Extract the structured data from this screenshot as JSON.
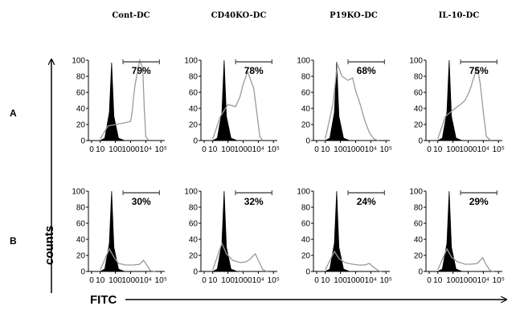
{
  "chart_data": {
    "type": "area",
    "columns": [
      "Cont-DC",
      "CD40KO-DC",
      "P19KO-DC",
      "IL-10-DC"
    ],
    "rows": [
      "A",
      "B"
    ],
    "xlabel": "FITC",
    "ylabel": "counts",
    "x_scale": "log",
    "x_tick_labels": [
      "0",
      "10",
      "100",
      "1000",
      "10⁴",
      "10⁵"
    ],
    "y_tick_labels": [
      "0",
      "20",
      "40",
      "60",
      "80",
      "100"
    ],
    "ylim": [
      0,
      100
    ],
    "colors": {
      "control_fill": "#000000",
      "sample_line": "#9a9a9a",
      "gate_line": "#555555"
    },
    "panels": [
      {
        "row": "A",
        "column": "Cont-DC",
        "gate_percent": "79%",
        "control": [
          [
            1,
            0
          ],
          [
            1.3,
            3
          ],
          [
            1.6,
            35
          ],
          [
            1.75,
            97
          ],
          [
            1.9,
            30
          ],
          [
            2.2,
            3
          ],
          [
            2.6,
            0
          ]
        ],
        "sample": [
          [
            1,
            2
          ],
          [
            1.5,
            18
          ],
          [
            2,
            20
          ],
          [
            2.6,
            22
          ],
          [
            3,
            24
          ],
          [
            3.1,
            35
          ],
          [
            3.2,
            55
          ],
          [
            3.3,
            70
          ],
          [
            3.45,
            85
          ],
          [
            3.6,
            100
          ],
          [
            3.8,
            90
          ],
          [
            3.9,
            40
          ],
          [
            4,
            5
          ],
          [
            4.2,
            0
          ]
        ]
      },
      {
        "row": "A",
        "column": "CD40KO-DC",
        "gate_percent": "78%",
        "control": [
          [
            1,
            0
          ],
          [
            1.3,
            3
          ],
          [
            1.6,
            35
          ],
          [
            1.75,
            100
          ],
          [
            1.9,
            30
          ],
          [
            2.2,
            3
          ],
          [
            2.6,
            0
          ]
        ],
        "sample": [
          [
            1,
            2
          ],
          [
            1.5,
            30
          ],
          [
            2,
            45
          ],
          [
            2.5,
            42
          ],
          [
            2.8,
            55
          ],
          [
            3,
            70
          ],
          [
            3.3,
            86
          ],
          [
            3.5,
            75
          ],
          [
            3.7,
            65
          ],
          [
            3.9,
            35
          ],
          [
            4.1,
            5
          ],
          [
            4.3,
            0
          ]
        ]
      },
      {
        "row": "A",
        "column": "P19KO-DC",
        "gate_percent": "68%",
        "control": [
          [
            1,
            0
          ],
          [
            1.3,
            3
          ],
          [
            1.6,
            35
          ],
          [
            1.75,
            98
          ],
          [
            1.9,
            30
          ],
          [
            2.2,
            3
          ],
          [
            2.6,
            0
          ]
        ],
        "sample": [
          [
            1,
            2
          ],
          [
            1.5,
            45
          ],
          [
            1.8,
            95
          ],
          [
            2.1,
            80
          ],
          [
            2.5,
            75
          ],
          [
            2.8,
            78
          ],
          [
            3,
            62
          ],
          [
            3.3,
            45
          ],
          [
            3.6,
            25
          ],
          [
            3.9,
            10
          ],
          [
            4.2,
            2
          ],
          [
            4.5,
            0
          ]
        ]
      },
      {
        "row": "A",
        "column": "IL-10-DC",
        "gate_percent": "75%",
        "control": [
          [
            1,
            0
          ],
          [
            1.3,
            3
          ],
          [
            1.6,
            35
          ],
          [
            1.75,
            100
          ],
          [
            1.9,
            30
          ],
          [
            2.2,
            3
          ],
          [
            2.6,
            0
          ]
        ],
        "sample": [
          [
            1,
            2
          ],
          [
            1.5,
            30
          ],
          [
            2,
            38
          ],
          [
            2.5,
            45
          ],
          [
            2.8,
            50
          ],
          [
            3.1,
            62
          ],
          [
            3.4,
            80
          ],
          [
            3.6,
            92
          ],
          [
            3.8,
            70
          ],
          [
            4,
            35
          ],
          [
            4.2,
            5
          ],
          [
            4.5,
            0
          ]
        ]
      },
      {
        "row": "B",
        "column": "Cont-DC",
        "gate_percent": "30%",
        "control": [
          [
            1,
            0
          ],
          [
            1.3,
            3
          ],
          [
            1.6,
            35
          ],
          [
            1.75,
            100
          ],
          [
            1.9,
            30
          ],
          [
            2.2,
            3
          ],
          [
            2.6,
            0
          ]
        ],
        "sample": [
          [
            1,
            2
          ],
          [
            1.6,
            28
          ],
          [
            1.9,
            18
          ],
          [
            2.2,
            10
          ],
          [
            2.7,
            8
          ],
          [
            3.2,
            8
          ],
          [
            3.6,
            9
          ],
          [
            3.85,
            14
          ],
          [
            4.1,
            7
          ],
          [
            4.3,
            1
          ],
          [
            4.6,
            0
          ]
        ]
      },
      {
        "row": "B",
        "column": "CD40KO-DC",
        "gate_percent": "32%",
        "control": [
          [
            1,
            0
          ],
          [
            1.3,
            3
          ],
          [
            1.6,
            35
          ],
          [
            1.75,
            100
          ],
          [
            1.9,
            30
          ],
          [
            2.2,
            3
          ],
          [
            2.6,
            0
          ]
        ],
        "sample": [
          [
            1,
            2
          ],
          [
            1.6,
            35
          ],
          [
            1.9,
            22
          ],
          [
            2.3,
            14
          ],
          [
            2.8,
            11
          ],
          [
            3.2,
            12
          ],
          [
            3.5,
            16
          ],
          [
            3.8,
            22
          ],
          [
            4.05,
            12
          ],
          [
            4.3,
            2
          ],
          [
            4.6,
            0
          ]
        ]
      },
      {
        "row": "B",
        "column": "P19KO-DC",
        "gate_percent": "24%",
        "control": [
          [
            1,
            0
          ],
          [
            1.3,
            3
          ],
          [
            1.6,
            35
          ],
          [
            1.75,
            100
          ],
          [
            1.9,
            30
          ],
          [
            2.2,
            3
          ],
          [
            2.6,
            0
          ]
        ],
        "sample": [
          [
            1,
            2
          ],
          [
            1.6,
            25
          ],
          [
            1.9,
            16
          ],
          [
            2.3,
            11
          ],
          [
            2.8,
            9
          ],
          [
            3.2,
            8
          ],
          [
            3.6,
            8
          ],
          [
            3.9,
            10
          ],
          [
            4.2,
            5
          ],
          [
            4.5,
            1
          ],
          [
            4.7,
            0
          ]
        ]
      },
      {
        "row": "B",
        "column": "IL-10-DC",
        "gate_percent": "29%",
        "control": [
          [
            1,
            0
          ],
          [
            1.3,
            3
          ],
          [
            1.6,
            35
          ],
          [
            1.75,
            100
          ],
          [
            1.9,
            30
          ],
          [
            2.2,
            3
          ],
          [
            2.6,
            0
          ]
        ],
        "sample": [
          [
            1,
            2
          ],
          [
            1.6,
            28
          ],
          [
            1.9,
            18
          ],
          [
            2.3,
            12
          ],
          [
            2.8,
            9
          ],
          [
            3.2,
            9
          ],
          [
            3.6,
            10
          ],
          [
            3.95,
            17
          ],
          [
            4.2,
            8
          ],
          [
            4.45,
            1
          ],
          [
            4.7,
            0
          ]
        ]
      }
    ]
  }
}
